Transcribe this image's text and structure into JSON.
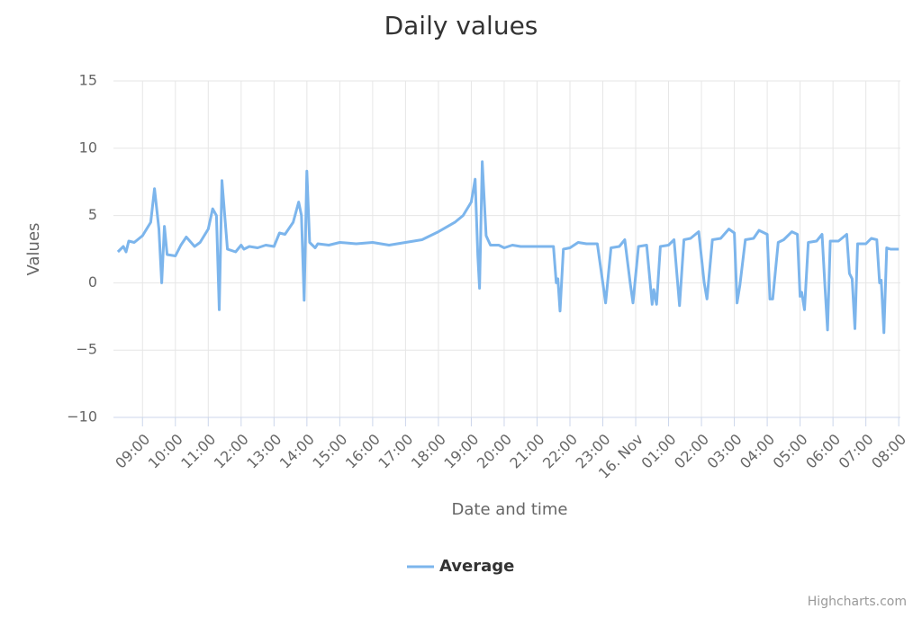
{
  "chart_data": {
    "type": "line",
    "title": "Daily values",
    "x_axis_label": "Date and time",
    "y_axis_label": "Values",
    "credits": "Highcharts.com",
    "legend": "bottom",
    "x": [
      "08:15",
      "08:25",
      "08:30",
      "08:35",
      "08:45",
      "09:00",
      "09:15",
      "09:22",
      "09:30",
      "09:35",
      "09:40",
      "09:45",
      "10:00",
      "10:10",
      "10:20",
      "10:35",
      "10:45",
      "11:00",
      "11:08",
      "11:15",
      "11:20",
      "11:25",
      "11:35",
      "11:50",
      "12:00",
      "12:05",
      "12:15",
      "12:30",
      "12:45",
      "13:00",
      "13:10",
      "13:20",
      "13:35",
      "13:45",
      "13:50",
      "13:55",
      "14:00",
      "14:05",
      "14:15",
      "14:20",
      "14:40",
      "15:00",
      "15:30",
      "16:00",
      "16:15",
      "16:30",
      "17:00",
      "17:30",
      "18:00",
      "18:30",
      "18:45",
      "19:00",
      "19:07",
      "19:12",
      "19:15",
      "19:20",
      "19:27",
      "19:35",
      "19:50",
      "20:00",
      "20:15",
      "20:30",
      "21:00",
      "21:30",
      "21:35",
      "21:38",
      "21:42",
      "21:48",
      "22:00",
      "22:15",
      "22:30",
      "22:50",
      "23:00",
      "23:05",
      "23:15",
      "23:30",
      "23:40",
      "23:50",
      "23:55",
      "00:05",
      "00:20",
      "00:30",
      "00:33",
      "00:38",
      "00:45",
      "01:00",
      "01:10",
      "01:20",
      "01:28",
      "01:40",
      "01:55",
      "02:05",
      "02:10",
      "02:20",
      "02:35",
      "02:50",
      "03:00",
      "03:05",
      "03:10",
      "03:20",
      "03:35",
      "03:45",
      "04:00",
      "04:05",
      "04:10",
      "04:20",
      "04:30",
      "04:45",
      "04:55",
      "05:00",
      "05:03",
      "05:08",
      "05:15",
      "05:30",
      "05:40",
      "05:45",
      "05:50",
      "05:55",
      "06:10",
      "06:25",
      "06:30",
      "06:35",
      "06:40",
      "06:45",
      "07:00",
      "07:10",
      "07:20",
      "07:25",
      "07:28",
      "07:33",
      "07:38",
      "07:45",
      "08:00"
    ],
    "series": [
      {
        "name": "Average",
        "color": "#7cb5ec",
        "values": [
          2.3,
          2.7,
          2.3,
          3.1,
          3.0,
          3.5,
          4.5,
          7.0,
          4.0,
          0.0,
          4.2,
          2.1,
          2.0,
          2.8,
          3.4,
          2.7,
          3.0,
          4.0,
          5.5,
          5.0,
          -2.0,
          7.6,
          2.5,
          2.3,
          2.8,
          2.5,
          2.7,
          2.6,
          2.8,
          2.7,
          3.7,
          3.6,
          4.5,
          6.0,
          5.0,
          -1.3,
          8.3,
          3.0,
          2.6,
          2.9,
          2.8,
          3.0,
          2.9,
          3.0,
          2.9,
          2.8,
          3.0,
          3.2,
          3.8,
          4.5,
          5.0,
          6.0,
          7.7,
          2.0,
          -0.4,
          9.0,
          3.5,
          2.8,
          2.8,
          2.6,
          2.8,
          2.7,
          2.7,
          2.7,
          0.0,
          0.3,
          -2.1,
          2.5,
          2.6,
          3.0,
          2.9,
          2.9,
          0.0,
          -1.5,
          2.6,
          2.7,
          3.2,
          0.0,
          -1.5,
          2.7,
          2.8,
          -1.6,
          -0.5,
          -1.6,
          2.7,
          2.8,
          3.2,
          -1.7,
          3.2,
          3.3,
          3.8,
          0.0,
          -1.2,
          3.2,
          3.3,
          4.0,
          3.7,
          -1.5,
          -0.2,
          3.2,
          3.3,
          3.9,
          3.6,
          -1.2,
          -1.2,
          3.0,
          3.2,
          3.8,
          3.6,
          -1.0,
          -0.7,
          -2.0,
          3.0,
          3.1,
          3.6,
          0.0,
          -3.5,
          3.1,
          3.1,
          3.6,
          0.7,
          0.3,
          -3.4,
          2.9,
          2.9,
          3.3,
          3.2,
          0.0,
          0.2,
          -3.7,
          2.6,
          2.5,
          2.5
        ]
      }
    ],
    "xlim": [
      "08:07",
      "08:03"
    ],
    "xticks": [
      "09:00",
      "10:00",
      "11:00",
      "12:00",
      "13:00",
      "14:00",
      "15:00",
      "16:00",
      "17:00",
      "18:00",
      "19:00",
      "20:00",
      "21:00",
      "22:00",
      "23:00",
      {
        "value": "00:00",
        "label": "16. Nov"
      },
      "01:00",
      "02:00",
      "03:00",
      "04:00",
      "05:00",
      "06:00",
      "07:00",
      "08:00"
    ],
    "ylim": [
      -10,
      15
    ],
    "yticks": [
      {
        "value": -10,
        "label": "−10"
      },
      {
        "value": -5,
        "label": "−5"
      },
      0,
      5,
      10,
      15
    ],
    "grid": true
  }
}
